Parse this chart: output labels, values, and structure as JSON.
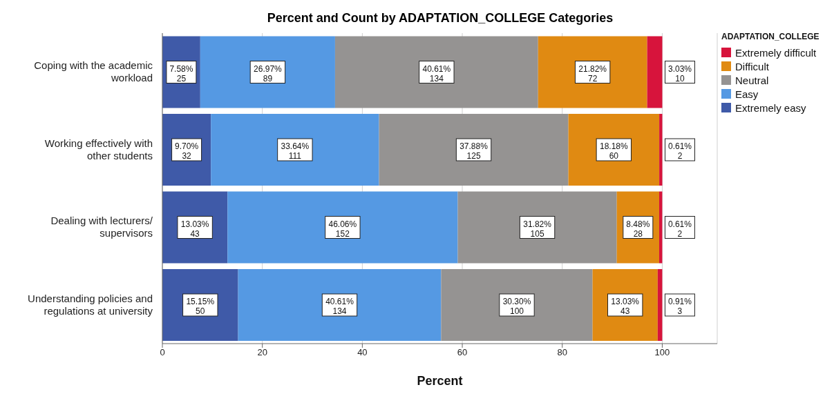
{
  "chart_data": {
    "type": "bar",
    "orientation": "horizontal",
    "stacked": true,
    "title": "Percent and Count by ADAPTATION_COLLEGE Categories",
    "xlabel": "Percent",
    "legend_title": "ADAPTATION_COLLEGE",
    "legend": "right",
    "grid": "x",
    "categories": [
      "Coping with the academic workload",
      "Working effectively with other students",
      "Dealing with lecturers/supervisors",
      "Understanding policies and regulations at university"
    ],
    "xlim": [
      0,
      111
    ],
    "xticks": [
      0,
      20,
      40,
      60,
      80,
      100
    ],
    "series": [
      {
        "name": "Extremely easy",
        "color": "#3f5aa8",
        "values": [
          7.58,
          9.7,
          13.03,
          15.15
        ],
        "value_labels": [
          "7.58%\n25",
          "9.70%\n32",
          "13.03%\n43",
          "15.15%\n50"
        ]
      },
      {
        "name": "Easy",
        "color": "#5599e3",
        "values": [
          26.97,
          33.64,
          46.06,
          40.61
        ],
        "value_labels": [
          "26.97%\n89",
          "33.64%\n111",
          "46.06%\n152",
          "40.61%\n134"
        ]
      },
      {
        "name": "Neutral",
        "color": "#959392",
        "values": [
          40.61,
          37.88,
          31.82,
          30.3
        ],
        "value_labels": [
          "40.61%\n134",
          "37.88%\n125",
          "31.82%\n105",
          "30.30%\n100"
        ]
      },
      {
        "name": "Difficult",
        "color": "#e08a12",
        "values": [
          21.82,
          18.18,
          8.48,
          13.03
        ],
        "value_labels": [
          "21.82%\n72",
          "18.18%\n60",
          "8.48%\n28",
          "13.03%\n43"
        ]
      },
      {
        "name": "Extremely difficult",
        "color": "#d7143c",
        "values": [
          3.03,
          0.61,
          0.61,
          0.91
        ],
        "value_labels": [
          "3.03%\n10",
          "0.61%\n2",
          "0.61%\n2",
          "0.91%\n3"
        ]
      }
    ]
  }
}
